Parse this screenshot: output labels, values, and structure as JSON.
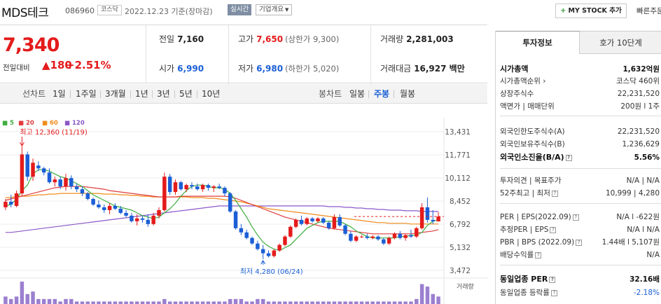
{
  "header": {
    "company_name": "MDS테크",
    "code": "086960",
    "market": "코스닥",
    "date_text": "2022.12.23  기준(장마감)",
    "realtime": "실시간",
    "company_info": "기업개요",
    "mystock_plus": "+",
    "mystock": "MY STOCK 추가",
    "quick": "빠른주문"
  },
  "price": {
    "current": "7,340",
    "diff_label": "전일대비",
    "diff_value": "▲180",
    "diff_pct": "+2.51%"
  },
  "summary": {
    "prev_label": "전일",
    "prev": "7,160",
    "high_label": "고가",
    "high": "7,650",
    "upper_limit": "(상한가 9,300)",
    "volume_label": "거래량",
    "volume": "2,281,003",
    "open_label": "시가",
    "open": "6,990",
    "low_label": "저가",
    "low": "6,980",
    "lower_limit": "(하한가 5,020)",
    "amount_label": "거래대금",
    "amount": "16,927 백만"
  },
  "toolbar": {
    "line_head": "선차트",
    "line_items": [
      "1일",
      "1주일",
      "3개월",
      "1년",
      "3년",
      "5년",
      "10년"
    ],
    "candle_head": "봉차트",
    "candle_items": [
      "일봉",
      "주봉",
      "월봉"
    ],
    "active_candle": "주봉"
  },
  "chart_data": {
    "type": "candlestick",
    "title": "",
    "ylabel": "",
    "yticks": [
      13431,
      11771,
      10112,
      8452,
      6792,
      5132,
      3472
    ],
    "ylim": [
      3472,
      13431
    ],
    "ma_legend": [
      {
        "label": "5",
        "color": "#3fae3f"
      },
      {
        "label": "20",
        "color": "#e03d3d"
      },
      {
        "label": "60",
        "color": "#f08c1c"
      },
      {
        "label": "120",
        "color": "#8b58c9"
      }
    ],
    "high_annotation": "최고 12,360 (11/19)",
    "low_annotation": "최저 4,280 (06/24)",
    "volume_label": "거래량",
    "candles": [
      {
        "o": 8000,
        "h": 8600,
        "l": 7800,
        "c": 8400
      },
      {
        "o": 8400,
        "h": 8900,
        "l": 8000,
        "c": 8200
      },
      {
        "o": 8100,
        "h": 9200,
        "l": 8000,
        "c": 9000
      },
      {
        "o": 9000,
        "h": 12360,
        "l": 8800,
        "c": 11800
      },
      {
        "o": 11800,
        "h": 12000,
        "l": 9900,
        "c": 10200
      },
      {
        "o": 10200,
        "h": 11500,
        "l": 9900,
        "c": 11200
      },
      {
        "o": 11000,
        "h": 11300,
        "l": 10600,
        "c": 10800
      },
      {
        "o": 10800,
        "h": 10900,
        "l": 10300,
        "c": 10500
      },
      {
        "o": 10500,
        "h": 10800,
        "l": 9700,
        "c": 9800
      },
      {
        "o": 9800,
        "h": 10200,
        "l": 9500,
        "c": 10000
      },
      {
        "o": 10000,
        "h": 10200,
        "l": 9300,
        "c": 9500
      },
      {
        "o": 9500,
        "h": 10400,
        "l": 9200,
        "c": 10100
      },
      {
        "o": 10100,
        "h": 10300,
        "l": 9300,
        "c": 9500
      },
      {
        "o": 9500,
        "h": 9700,
        "l": 9100,
        "c": 9300
      },
      {
        "o": 9300,
        "h": 9500,
        "l": 8800,
        "c": 9000
      },
      {
        "o": 9000,
        "h": 9100,
        "l": 8500,
        "c": 8600
      },
      {
        "o": 8600,
        "h": 8700,
        "l": 8100,
        "c": 8200
      },
      {
        "o": 8200,
        "h": 8500,
        "l": 7900,
        "c": 8000
      },
      {
        "o": 8000,
        "h": 8200,
        "l": 7600,
        "c": 7800
      },
      {
        "o": 7800,
        "h": 8300,
        "l": 7500,
        "c": 8100
      },
      {
        "o": 8100,
        "h": 8300,
        "l": 7800,
        "c": 7900
      },
      {
        "o": 7900,
        "h": 8100,
        "l": 7500,
        "c": 7600
      },
      {
        "o": 7600,
        "h": 7800,
        "l": 7300,
        "c": 7400
      },
      {
        "o": 7400,
        "h": 7600,
        "l": 6900,
        "c": 7000
      },
      {
        "o": 7000,
        "h": 7500,
        "l": 6700,
        "c": 7200
      },
      {
        "o": 7200,
        "h": 7400,
        "l": 6900,
        "c": 7100
      },
      {
        "o": 7100,
        "h": 7500,
        "l": 6600,
        "c": 6800
      },
      {
        "o": 6800,
        "h": 7600,
        "l": 6700,
        "c": 7400
      },
      {
        "o": 7400,
        "h": 8000,
        "l": 7200,
        "c": 7800
      },
      {
        "o": 7800,
        "h": 10500,
        "l": 7700,
        "c": 10200
      },
      {
        "o": 10200,
        "h": 10400,
        "l": 8900,
        "c": 9100
      },
      {
        "o": 9100,
        "h": 10000,
        "l": 8900,
        "c": 9800
      },
      {
        "o": 9800,
        "h": 9900,
        "l": 9200,
        "c": 9300
      },
      {
        "o": 9300,
        "h": 9700,
        "l": 9100,
        "c": 9600
      },
      {
        "o": 9600,
        "h": 9800,
        "l": 9300,
        "c": 9500
      },
      {
        "o": 9500,
        "h": 9700,
        "l": 9200,
        "c": 9300
      },
      {
        "o": 9300,
        "h": 9700,
        "l": 9100,
        "c": 9600
      },
      {
        "o": 9600,
        "h": 9700,
        "l": 9200,
        "c": 9400
      },
      {
        "o": 9400,
        "h": 9600,
        "l": 9100,
        "c": 9500
      },
      {
        "o": 9500,
        "h": 9700,
        "l": 9300,
        "c": 9400
      },
      {
        "o": 9400,
        "h": 9500,
        "l": 8800,
        "c": 9000
      },
      {
        "o": 9000,
        "h": 9100,
        "l": 7600,
        "c": 7700
      },
      {
        "o": 7700,
        "h": 7800,
        "l": 6400,
        "c": 6500
      },
      {
        "o": 6500,
        "h": 6800,
        "l": 6000,
        "c": 6200
      },
      {
        "o": 6200,
        "h": 6400,
        "l": 5700,
        "c": 5800
      },
      {
        "o": 5800,
        "h": 5900,
        "l": 5300,
        "c": 5400
      },
      {
        "o": 5400,
        "h": 5600,
        "l": 4900,
        "c": 5000
      },
      {
        "o": 5000,
        "h": 5300,
        "l": 4280,
        "c": 4700
      },
      {
        "o": 4700,
        "h": 4900,
        "l": 4400,
        "c": 4500
      },
      {
        "o": 4500,
        "h": 5000,
        "l": 4400,
        "c": 4900
      },
      {
        "o": 4900,
        "h": 5400,
        "l": 4800,
        "c": 5300
      },
      {
        "o": 5300,
        "h": 6000,
        "l": 5200,
        "c": 5900
      },
      {
        "o": 5900,
        "h": 6700,
        "l": 5800,
        "c": 6600
      },
      {
        "o": 6600,
        "h": 7200,
        "l": 6500,
        "c": 7100
      },
      {
        "o": 7100,
        "h": 7400,
        "l": 6700,
        "c": 6800
      },
      {
        "o": 6800,
        "h": 7300,
        "l": 6700,
        "c": 7200
      },
      {
        "o": 7200,
        "h": 7300,
        "l": 6900,
        "c": 7000
      },
      {
        "o": 7000,
        "h": 7300,
        "l": 6900,
        "c": 7200
      },
      {
        "o": 7200,
        "h": 7300,
        "l": 6800,
        "c": 6900
      },
      {
        "o": 6900,
        "h": 7000,
        "l": 6400,
        "c": 6500
      },
      {
        "o": 6500,
        "h": 7500,
        "l": 6400,
        "c": 7300
      },
      {
        "o": 7300,
        "h": 7500,
        "l": 6600,
        "c": 6700
      },
      {
        "o": 6700,
        "h": 6800,
        "l": 6000,
        "c": 6100
      },
      {
        "o": 6100,
        "h": 6300,
        "l": 5500,
        "c": 5600
      },
      {
        "o": 5600,
        "h": 6000,
        "l": 5500,
        "c": 5900
      },
      {
        "o": 5900,
        "h": 6000,
        "l": 5800,
        "c": 5900
      },
      {
        "o": 5900,
        "h": 6100,
        "l": 5700,
        "c": 5800
      },
      {
        "o": 5800,
        "h": 6000,
        "l": 5700,
        "c": 5900
      },
      {
        "o": 5900,
        "h": 6000,
        "l": 5600,
        "c": 5700
      },
      {
        "o": 5700,
        "h": 5800,
        "l": 5300,
        "c": 5400
      },
      {
        "o": 5400,
        "h": 5900,
        "l": 5300,
        "c": 5800
      },
      {
        "o": 5800,
        "h": 6200,
        "l": 5700,
        "c": 6100
      },
      {
        "o": 6100,
        "h": 6300,
        "l": 5700,
        "c": 5800
      },
      {
        "o": 5800,
        "h": 6100,
        "l": 5600,
        "c": 6000
      },
      {
        "o": 6000,
        "h": 6400,
        "l": 5800,
        "c": 5900
      },
      {
        "o": 5900,
        "h": 6600,
        "l": 5800,
        "c": 6500
      },
      {
        "o": 6500,
        "h": 8300,
        "l": 6400,
        "c": 8000
      },
      {
        "o": 8000,
        "h": 8700,
        "l": 6900,
        "c": 7100
      },
      {
        "o": 7100,
        "h": 7800,
        "l": 6800,
        "c": 7000
      },
      {
        "o": 6990,
        "h": 7650,
        "l": 6980,
        "c": 7340
      }
    ],
    "ma5": [
      8100,
      8200,
      8600,
      9200,
      9600,
      10400,
      10700,
      10700,
      10600,
      10400,
      10200,
      10100,
      9900,
      9700,
      9500,
      9200,
      8900,
      8700,
      8500,
      8300,
      8100,
      8000,
      7900,
      7800,
      7600,
      7400,
      7300,
      7200,
      7300,
      7600,
      7900,
      8300,
      8800,
      9200,
      9500,
      9600,
      9600,
      9500,
      9400,
      9400,
      9300,
      9000,
      8500,
      7900,
      7300,
      6600,
      6000,
      5500,
      5200,
      5000,
      4900,
      5100,
      5300,
      5700,
      6100,
      6500,
      6700,
      6900,
      7000,
      7000,
      7000,
      7000,
      6800,
      6600,
      6300,
      6100,
      5900,
      5800,
      5800,
      5800,
      5800,
      5800,
      5900,
      5900,
      6000,
      6000,
      6200,
      6700,
      7000,
      7100
    ],
    "ma20": [
      8500,
      8600,
      8700,
      8800,
      8900,
      9000,
      9100,
      9200,
      9300,
      9400,
      9450,
      9500,
      9500,
      9500,
      9500,
      9450,
      9400,
      9350,
      9300,
      9200,
      9150,
      9100,
      9050,
      9000,
      8950,
      8900,
      8850,
      8800,
      8750,
      8750,
      8750,
      8750,
      8800,
      8800,
      8800,
      8800,
      8800,
      8800,
      8800,
      8800,
      8800,
      8750,
      8650,
      8500,
      8350,
      8200,
      8050,
      7900,
      7750,
      7600,
      7450,
      7300,
      7200,
      7100,
      7000,
      6900,
      6800,
      6700,
      6600,
      6500,
      6450,
      6400,
      6350,
      6300,
      6250,
      6200,
      6150,
      6100,
      6100,
      6100,
      6100,
      6100,
      6100,
      6100,
      6100,
      6150,
      6200,
      6250,
      6300,
      6400
    ],
    "ma60": [
      8700,
      8700,
      8800,
      8800,
      8800,
      8850,
      8900,
      8900,
      8950,
      8950,
      9000,
      9000,
      9000,
      9000,
      9000,
      9000,
      9000,
      9000,
      8950,
      8950,
      8950,
      8900,
      8900,
      8850,
      8850,
      8800,
      8800,
      8750,
      8750,
      8750,
      8750,
      8750,
      8750,
      8750,
      8700,
      8700,
      8700,
      8650,
      8650,
      8600,
      8550,
      8500,
      8450,
      8400,
      8300,
      8200,
      8100,
      8000,
      7900,
      7850,
      7800,
      7750,
      7700,
      7650,
      7600,
      7550,
      7500,
      7450,
      7400,
      7350,
      7300,
      7250,
      7200,
      7150,
      7100,
      7050,
      7000,
      6950,
      6900,
      6900,
      6850,
      6850,
      6850,
      6850,
      6800,
      6800,
      6800,
      6800,
      6800,
      6800
    ],
    "ma120": [
      6200,
      6200,
      6250,
      6300,
      6350,
      6400,
      6450,
      6500,
      6550,
      6600,
      6650,
      6700,
      6750,
      6800,
      6850,
      6900,
      6950,
      7000,
      7050,
      7100,
      7150,
      7200,
      7250,
      7300,
      7350,
      7400,
      7450,
      7500,
      7550,
      7600,
      7650,
      7700,
      7750,
      7800,
      7850,
      7900,
      7950,
      8000,
      8050,
      8100,
      8100,
      8100,
      8100,
      8100,
      8100,
      8100,
      8100,
      8100,
      8100,
      8100,
      8100,
      8100,
      8100,
      8100,
      8100,
      8100,
      8100,
      8100,
      8100,
      8050,
      8050,
      8050,
      8000,
      8000,
      7950,
      7950,
      7900,
      7900,
      7850,
      7850,
      7800,
      7800,
      7800,
      7750,
      7750,
      7750,
      7700,
      7700,
      7700,
      7700
    ],
    "volume": [
      3,
      2,
      3,
      9,
      4,
      5,
      2,
      2,
      2,
      2,
      1,
      2,
      2,
      1,
      1,
      1,
      1,
      1,
      1,
      1,
      1,
      1,
      1,
      1,
      1,
      1,
      1,
      1,
      1,
      2,
      1,
      1,
      1,
      1,
      1,
      1,
      1,
      1,
      1,
      1,
      1,
      2,
      2,
      2,
      1,
      1,
      2,
      2,
      1,
      1,
      1,
      1,
      1,
      1,
      1,
      1,
      1,
      1,
      1,
      1,
      1,
      1,
      1,
      1,
      1,
      1,
      1,
      1,
      1,
      1,
      1,
      1,
      1,
      1,
      1,
      2,
      8,
      7,
      4,
      3
    ]
  },
  "panel": {
    "tab_invest": "투자정보",
    "tab_quote": "호가 10단계",
    "rows": [
      {
        "label": "시가총액",
        "value": "1,632억원",
        "bold": true
      },
      {
        "label": "시가총액순위 ›",
        "value": "코스닥 460위"
      },
      {
        "label": "상장주식수",
        "value": "22,231,520"
      },
      {
        "label": "액면가 | 매매단위",
        "value": "200원  l  1주"
      },
      {
        "label": "외국인한도주식수(A)",
        "value": "22,231,520"
      },
      {
        "label": "외국인보유주식수(B)",
        "value": "1,236,629"
      },
      {
        "label": "외국인소진율(B/A)",
        "value": "5.56%",
        "bold": true,
        "q": true
      },
      {
        "label": "투자의견 | 목표주가",
        "value": "N/A  |  N/A"
      },
      {
        "label": "52주최고 | 최저",
        "value": "10,999  |  4,280",
        "q": true
      },
      {
        "label": "PER | EPS(2022.09)",
        "value": "N/A  l  -622원",
        "q": true
      },
      {
        "label": "추정PER | EPS",
        "value": "N/A  l  N/A",
        "q": true
      },
      {
        "label": "PBR | BPS (2022.09)",
        "value": "1.44배  l  5,107원",
        "q": true
      },
      {
        "label": "배당수익률",
        "value": "N/A",
        "q": true
      },
      {
        "label": "동일업종 PER",
        "value": "32.16배",
        "bold": true,
        "q": true
      },
      {
        "label": "동일업종 등락률",
        "value": "-2.18%",
        "blue": true,
        "q": true
      }
    ]
  }
}
